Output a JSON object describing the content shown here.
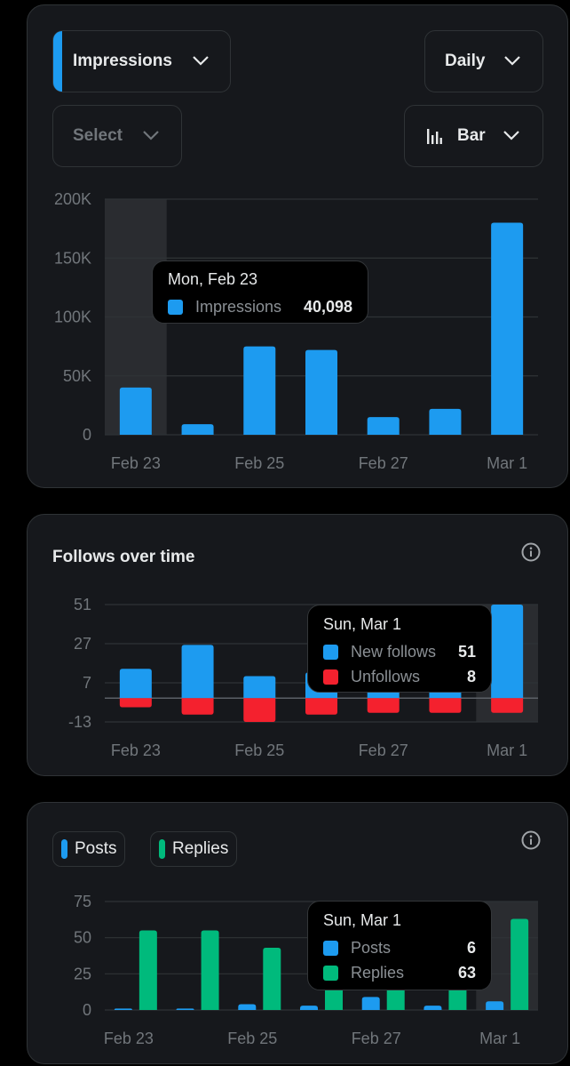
{
  "card1": {
    "metric_dropdown": "Impressions",
    "period_dropdown": "Daily",
    "select_dropdown": "Select",
    "chart_type_dropdown": "Bar",
    "tooltip": {
      "title": "Mon, Feb 23",
      "label": "Impressions",
      "value": "40,098"
    }
  },
  "card2": {
    "title": "Follows over time",
    "tooltip": {
      "title": "Sun, Mar 1",
      "rows": [
        {
          "label": "New follows",
          "value": "51"
        },
        {
          "label": "Unfollows",
          "value": "8"
        }
      ]
    }
  },
  "card3": {
    "legend": {
      "posts": "Posts",
      "replies": "Replies"
    },
    "tooltip": {
      "title": "Sun, Mar 1",
      "rows": [
        {
          "label": "Posts",
          "value": "6"
        },
        {
          "label": "Replies",
          "value": "63"
        }
      ]
    }
  },
  "colors": {
    "blue": "#1d9bf0",
    "red": "#f4212e",
    "green": "#00ba7c",
    "grid": "#2f3336",
    "axis_text": "#71767b"
  },
  "chart_data": [
    {
      "type": "bar",
      "categories": [
        "Feb 23",
        "Feb 24",
        "Feb 25",
        "Feb 26",
        "Feb 27",
        "Feb 28",
        "Mar 1"
      ],
      "x_tick_labels": [
        "Feb 23",
        "Feb 25",
        "Feb 27",
        "Mar 1"
      ],
      "y_ticks": [
        "200K",
        "150K",
        "100K",
        "50K",
        "0"
      ],
      "ylim": [
        0,
        200000
      ],
      "series": [
        {
          "name": "Impressions",
          "values": [
            40098,
            9000,
            75000,
            72000,
            15000,
            22000,
            180000
          ]
        }
      ],
      "highlight": "Feb 23"
    },
    {
      "type": "bar",
      "title": "Follows over time",
      "categories": [
        "Feb 23",
        "Feb 24",
        "Feb 25",
        "Feb 26",
        "Feb 27",
        "Feb 28",
        "Mar 1"
      ],
      "x_tick_labels": [
        "Feb 23",
        "Feb 25",
        "Feb 27",
        "Mar 1"
      ],
      "y_ticks": [
        "51",
        "27",
        "7",
        "-13"
      ],
      "ylim": [
        -13,
        51
      ],
      "series": [
        {
          "name": "New follows",
          "values": [
            16,
            29,
            12,
            14,
            14,
            14,
            51
          ]
        },
        {
          "name": "Unfollows",
          "values": [
            -5,
            -9,
            -13,
            -9,
            -8,
            -8,
            -8
          ]
        }
      ],
      "highlight": "Mar 1"
    },
    {
      "type": "bar",
      "categories": [
        "Feb 23",
        "Feb 24",
        "Feb 25",
        "Feb 26",
        "Feb 27",
        "Feb 28",
        "Mar 1"
      ],
      "x_tick_labels": [
        "Feb 23",
        "Feb 25",
        "Feb 27",
        "Mar 1"
      ],
      "y_ticks": [
        "75",
        "50",
        "25",
        "0"
      ],
      "ylim": [
        0,
        75
      ],
      "series": [
        {
          "name": "Posts",
          "values": [
            1,
            1,
            4,
            3,
            9,
            3,
            6
          ]
        },
        {
          "name": "Replies",
          "values": [
            55,
            55,
            43,
            37,
            37,
            37,
            63
          ]
        }
      ],
      "highlight": "Mar 1"
    }
  ]
}
